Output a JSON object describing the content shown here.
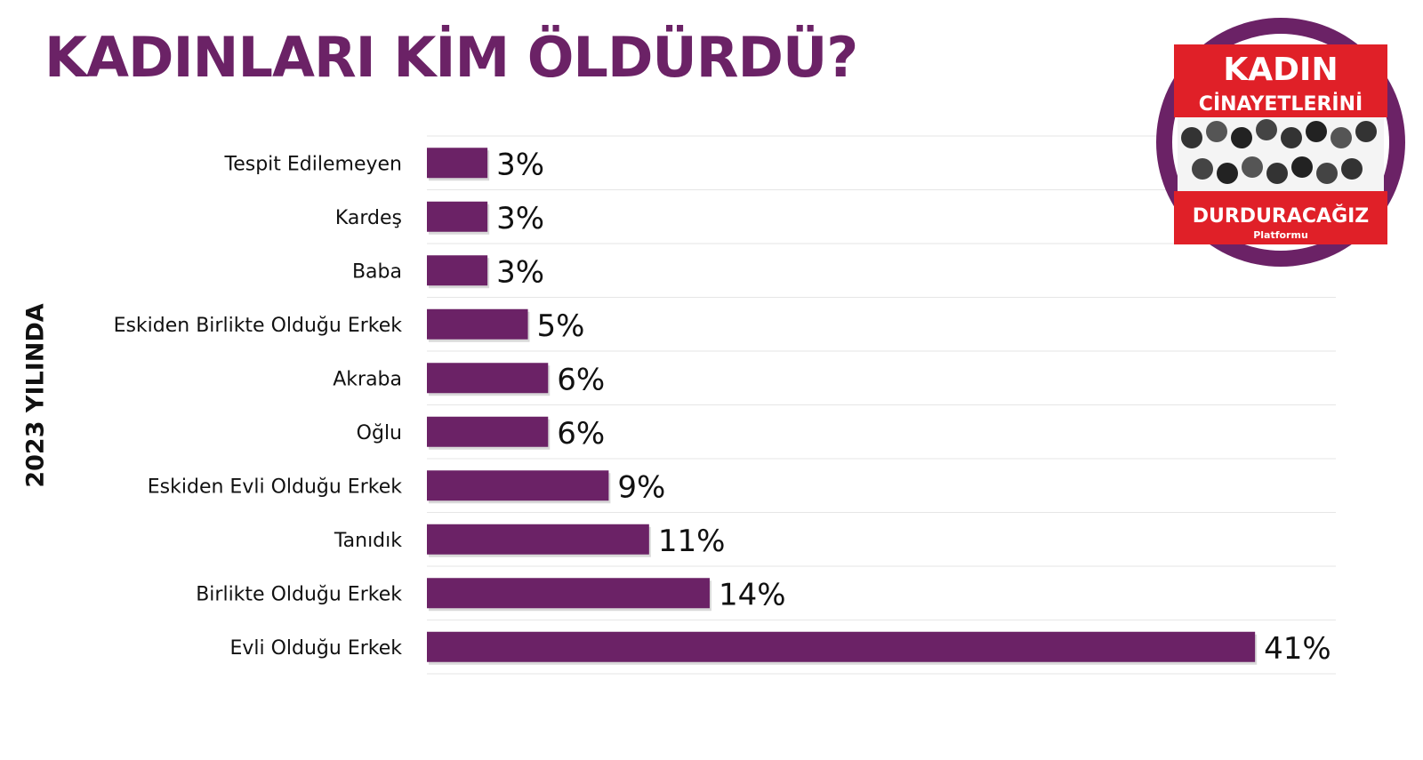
{
  "header": {
    "title": "KADINLARI KİM ÖLDÜRDÜ?"
  },
  "side_label": "2023 YILINDA",
  "logo": {
    "line1": "KADIN",
    "line2": "CİNAYETLERİNİ",
    "line3": "DURDURACAĞIZ",
    "line4": "Platformu"
  },
  "colors": {
    "accent": "#6b2266",
    "logo_red": "#e02028",
    "text": "#111111"
  },
  "chart_data": {
    "type": "bar",
    "orientation": "horizontal",
    "categories": [
      "Tespit Edilemeyen",
      "Kardeş",
      "Baba",
      "Eskiden Birlikte Olduğu Erkek",
      "Akraba",
      "Oğlu",
      "Eskiden Evli Olduğu Erkek",
      "Tanıdık",
      "Birlikte Olduğu Erkek",
      "Evli Olduğu Erkek"
    ],
    "values": [
      3,
      3,
      3,
      5,
      6,
      6,
      9,
      11,
      14,
      41
    ],
    "value_labels": [
      "3%",
      "3%",
      "3%",
      "5%",
      "6%",
      "6%",
      "9%",
      "11%",
      "14%",
      "41%"
    ],
    "xlim": [
      0,
      45
    ],
    "grid": true
  }
}
